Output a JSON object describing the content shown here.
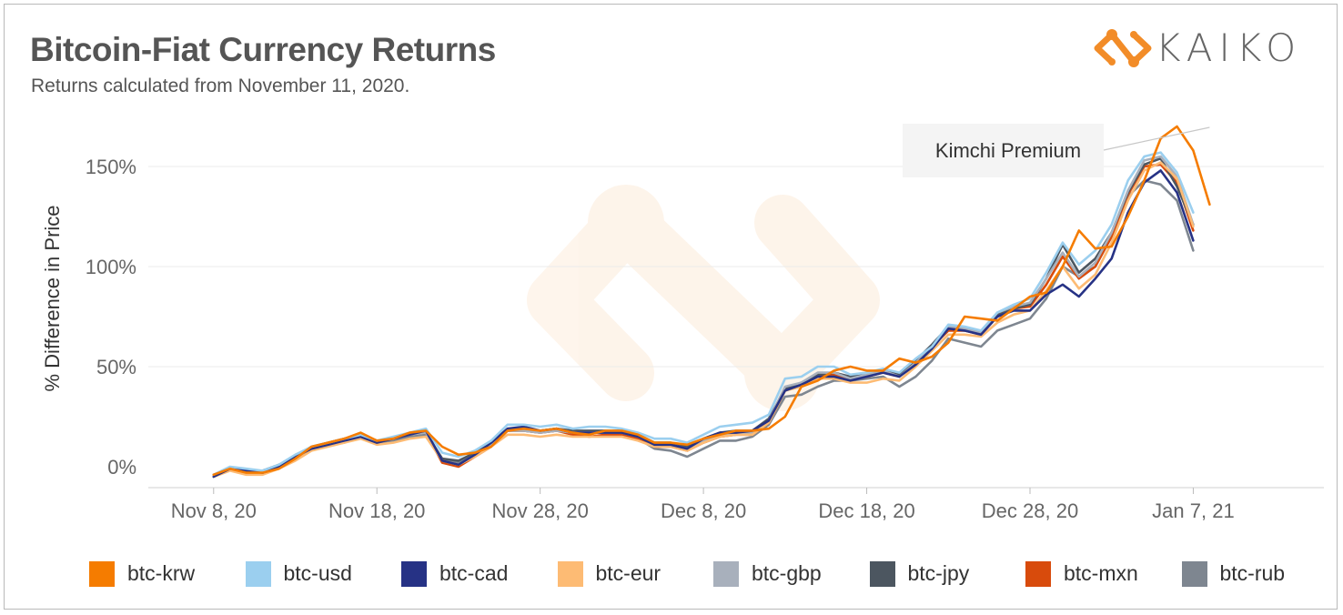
{
  "header": {
    "title": "Bitcoin-Fiat Currency Returns",
    "subtitle": "Returns calculated from November 11, 2020."
  },
  "logo": {
    "text": "KAIKO",
    "icon": "kaiko-logo-icon",
    "color": "#F28C28"
  },
  "chart_data": {
    "type": "line",
    "ylabel": "% Difference in Price",
    "ylim": [
      -8,
      170
    ],
    "yticks": [
      0,
      50,
      100,
      150
    ],
    "ytick_labels": [
      "0%",
      "50%",
      "100%",
      "150%"
    ],
    "xlim": [
      "2020-11-04",
      "2021-01-15"
    ],
    "xticks": [
      "2020-11-08",
      "2020-11-18",
      "2020-11-28",
      "2020-12-08",
      "2020-12-18",
      "2020-12-28",
      "2021-01-07"
    ],
    "xtick_labels": [
      "Nov 8, 20",
      "Nov 18, 20",
      "Nov 28, 20",
      "Dec 8, 20",
      "Dec 18, 20",
      "Dec 28, 20",
      "Jan 7, 21"
    ],
    "grid": "horizontal",
    "legend_placement": "bottom",
    "annotation": {
      "text": "Kimchi Premium",
      "date": "2021-01-08",
      "value": 170
    },
    "x": [
      "2020-11-08",
      "2020-11-09",
      "2020-11-10",
      "2020-11-11",
      "2020-11-12",
      "2020-11-13",
      "2020-11-14",
      "2020-11-15",
      "2020-11-16",
      "2020-11-17",
      "2020-11-18",
      "2020-11-19",
      "2020-11-20",
      "2020-11-21",
      "2020-11-22",
      "2020-11-23",
      "2020-11-24",
      "2020-11-25",
      "2020-11-26",
      "2020-11-27",
      "2020-11-28",
      "2020-11-29",
      "2020-11-30",
      "2020-12-01",
      "2020-12-02",
      "2020-12-03",
      "2020-12-04",
      "2020-12-05",
      "2020-12-06",
      "2020-12-07",
      "2020-12-08",
      "2020-12-09",
      "2020-12-10",
      "2020-12-11",
      "2020-12-12",
      "2020-12-13",
      "2020-12-14",
      "2020-12-15",
      "2020-12-16",
      "2020-12-17",
      "2020-12-18",
      "2020-12-19",
      "2020-12-20",
      "2020-12-21",
      "2020-12-22",
      "2020-12-23",
      "2020-12-24",
      "2020-12-25",
      "2020-12-26",
      "2020-12-27",
      "2020-12-28",
      "2020-12-29",
      "2020-12-30",
      "2020-12-31",
      "2021-01-01",
      "2021-01-02",
      "2021-01-03",
      "2021-01-04",
      "2021-01-05",
      "2021-01-06",
      "2021-01-07",
      "2021-01-08",
      "2021-01-09",
      "2021-01-10",
      "2021-01-11"
    ],
    "series": [
      {
        "name": "btc-krw",
        "color": "#F57C00",
        "values": [
          -4,
          -1,
          -3,
          -3,
          -1,
          4,
          10,
          12,
          14,
          17,
          13,
          14,
          17,
          18,
          10,
          6,
          7,
          10,
          18,
          19,
          18,
          19,
          17,
          16,
          18,
          18,
          16,
          12,
          12,
          11,
          14,
          16,
          18,
          18,
          19,
          25,
          40,
          43,
          48,
          50,
          48,
          48,
          54,
          52,
          55,
          62,
          75,
          74,
          73,
          79,
          85,
          87,
          100,
          118,
          109,
          110,
          125,
          143,
          164,
          170,
          158,
          131,
          null,
          null,
          null
        ]
      },
      {
        "name": "btc-usd",
        "color": "#9BCFEF",
        "values": [
          -4,
          0,
          -1,
          -2,
          1,
          6,
          10,
          12,
          14,
          16,
          13,
          15,
          17,
          19,
          7,
          5,
          8,
          13,
          21,
          21,
          20,
          21,
          19,
          20,
          20,
          19,
          17,
          14,
          14,
          12,
          16,
          20,
          21,
          22,
          26,
          44,
          45,
          50,
          50,
          46,
          47,
          49,
          47,
          54,
          60,
          71,
          70,
          68,
          77,
          81,
          84,
          97,
          112,
          101,
          108,
          121,
          143,
          155,
          157,
          147,
          127,
          null,
          null,
          null,
          null
        ]
      },
      {
        "name": "btc-cad",
        "color": "#263285",
        "values": [
          -5,
          -1,
          -2,
          -3,
          0,
          5,
          9,
          11,
          13,
          15,
          12,
          14,
          16,
          18,
          3,
          1,
          6,
          12,
          19,
          20,
          18,
          19,
          17,
          17,
          17,
          17,
          15,
          11,
          11,
          9,
          14,
          17,
          17,
          18,
          23,
          38,
          41,
          45,
          45,
          43,
          45,
          47,
          45,
          51,
          59,
          69,
          68,
          66,
          75,
          78,
          78,
          86,
          91,
          85,
          94,
          104,
          127,
          142,
          148,
          137,
          113,
          null,
          null,
          null,
          null
        ]
      },
      {
        "name": "btc-eur",
        "color": "#FDBB74",
        "values": [
          -5,
          -2,
          -4,
          -4,
          -1,
          3,
          8,
          10,
          12,
          14,
          11,
          12,
          14,
          15,
          3,
          1,
          5,
          10,
          16,
          16,
          15,
          16,
          15,
          15,
          15,
          15,
          13,
          10,
          10,
          8,
          12,
          15,
          16,
          16,
          22,
          38,
          40,
          44,
          44,
          42,
          42,
          44,
          43,
          50,
          58,
          66,
          66,
          65,
          72,
          76,
          78,
          88,
          100,
          89,
          96,
          112,
          133,
          148,
          152,
          144,
          120,
          null,
          null,
          null,
          null
        ]
      },
      {
        "name": "btc-gbp",
        "color": "#A8B0BC",
        "values": [
          -5,
          -1,
          -3,
          -3,
          0,
          5,
          9,
          11,
          13,
          16,
          12,
          14,
          16,
          17,
          3,
          1,
          6,
          11,
          18,
          18,
          17,
          18,
          17,
          17,
          17,
          17,
          15,
          11,
          11,
          9,
          13,
          16,
          17,
          17,
          23,
          40,
          42,
          47,
          47,
          44,
          46,
          48,
          45,
          52,
          60,
          70,
          69,
          67,
          77,
          80,
          82,
          94,
          107,
          95,
          102,
          117,
          138,
          153,
          155,
          145,
          121,
          null,
          null,
          null,
          null
        ]
      },
      {
        "name": "btc-jpy",
        "color": "#4C5660",
        "values": [
          -4,
          -1,
          -2,
          -2,
          1,
          5,
          10,
          12,
          14,
          16,
          13,
          14,
          16,
          17,
          4,
          3,
          7,
          12,
          19,
          19,
          18,
          19,
          18,
          18,
          18,
          18,
          16,
          12,
          12,
          10,
          14,
          17,
          18,
          18,
          24,
          39,
          42,
          46,
          47,
          45,
          46,
          48,
          46,
          53,
          61,
          70,
          69,
          67,
          76,
          79,
          81,
          94,
          111,
          97,
          104,
          117,
          137,
          151,
          154,
          140,
          121,
          null,
          null,
          null,
          null
        ]
      },
      {
        "name": "btc-mxn",
        "color": "#D84B0C",
        "values": [
          -4,
          -1,
          -2,
          -3,
          0,
          5,
          10,
          12,
          14,
          16,
          13,
          14,
          16,
          17,
          2,
          0,
          5,
          10,
          18,
          18,
          17,
          18,
          16,
          15,
          16,
          16,
          14,
          10,
          10,
          8,
          12,
          15,
          16,
          16,
          22,
          38,
          41,
          46,
          46,
          44,
          45,
          47,
          45,
          52,
          60,
          68,
          68,
          66,
          75,
          79,
          80,
          91,
          105,
          94,
          100,
          115,
          136,
          150,
          151,
          142,
          118,
          null,
          null,
          null,
          null
        ]
      },
      {
        "name": "btc-rub",
        "color": "#7E8690",
        "values": [
          -4,
          -1,
          -2,
          -3,
          0,
          4,
          9,
          11,
          12,
          15,
          12,
          13,
          15,
          16,
          4,
          2,
          6,
          11,
          18,
          18,
          17,
          18,
          17,
          17,
          17,
          17,
          14,
          9,
          8,
          5,
          9,
          13,
          13,
          15,
          21,
          35,
          36,
          40,
          43,
          43,
          44,
          45,
          40,
          45,
          53,
          64,
          62,
          60,
          68,
          71,
          74,
          84,
          100,
          95,
          100,
          115,
          135,
          143,
          141,
          133,
          108,
          null,
          null,
          null,
          null
        ]
      }
    ]
  }
}
